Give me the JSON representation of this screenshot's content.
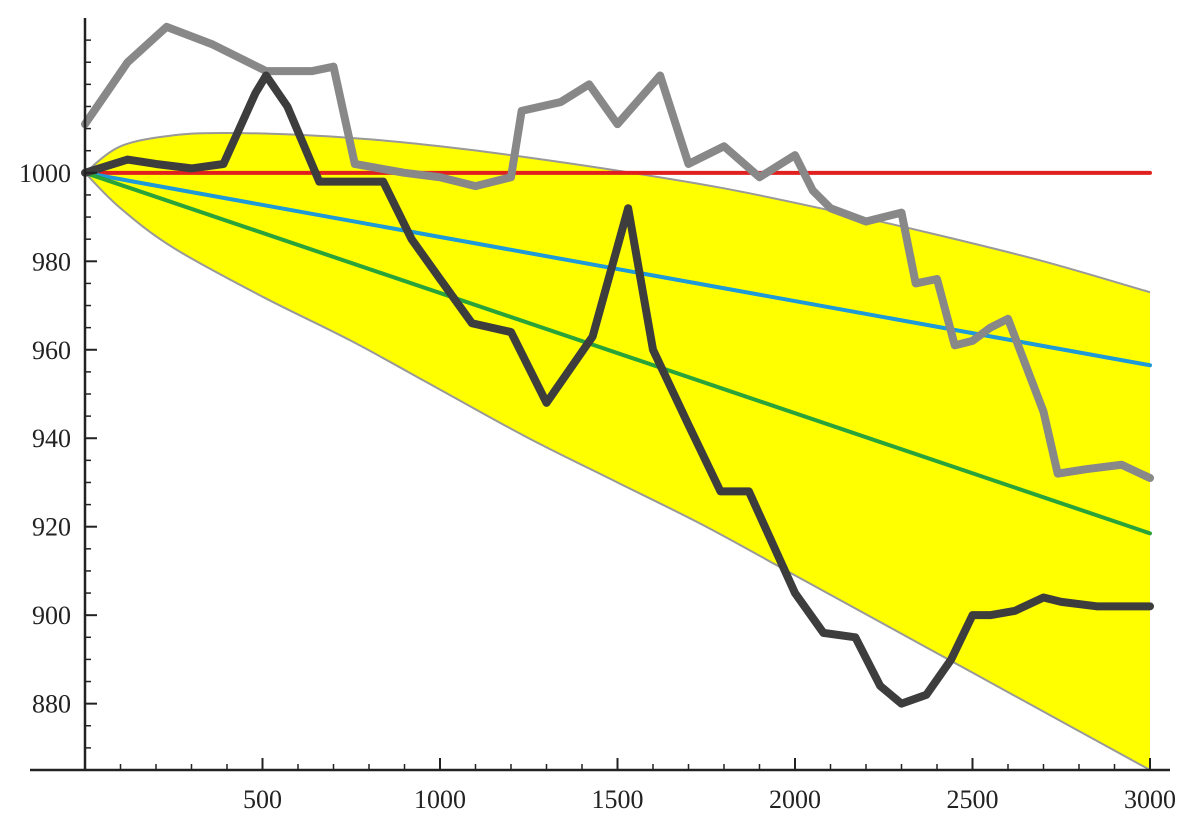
{
  "chart_data": {
    "type": "line",
    "title": "",
    "xlabel": "",
    "ylabel": "",
    "xlim": [
      0,
      3000
    ],
    "ylim": [
      865,
      1035
    ],
    "x_ticks": [
      500,
      1000,
      1500,
      2000,
      2500,
      3000
    ],
    "y_ticks": [
      880,
      900,
      920,
      940,
      960,
      980,
      1000
    ],
    "x_tick_labels": [
      "500",
      "1000",
      "1500",
      "2000",
      "2500",
      "3000"
    ],
    "y_tick_labels": [
      "880",
      "900",
      "920",
      "940",
      "960",
      "980",
      "1000"
    ],
    "grid": false,
    "band": {
      "fill": "#ffff00",
      "outline": "#999999",
      "upper": {
        "x": [
          0,
          100,
          250,
          400,
          600,
          800,
          1000,
          1200,
          1500,
          1800,
          2100,
          2400,
          2700,
          3000
        ],
        "y": [
          1000,
          1006,
          1008.5,
          1009,
          1008.6,
          1007.6,
          1006,
          1004,
          1000.5,
          996.5,
          991.5,
          986,
          980,
          973
        ]
      },
      "lower": {
        "x": [
          0,
          100,
          250,
          500,
          750,
          1000,
          1250,
          1500,
          1750,
          2000,
          2250,
          2500,
          2750,
          3000
        ],
        "y": [
          1000,
          992,
          983,
          972,
          962,
          951,
          940,
          930,
          920,
          909,
          898,
          887,
          876,
          865
        ]
      }
    },
    "series": [
      {
        "color": "#e0201e",
        "width": 4,
        "x": [
          0,
          3000
        ],
        "y": [
          1000,
          1000
        ]
      },
      {
        "color": "#1e9ad8",
        "width": 4,
        "x": [
          0,
          3000
        ],
        "y": [
          1000,
          956.5
        ]
      },
      {
        "color": "#2aa33a",
        "width": 4,
        "x": [
          0,
          3000
        ],
        "y": [
          1000,
          918.5
        ]
      },
      {
        "color": "#888888",
        "width": 8,
        "x": [
          0,
          120,
          230,
          360,
          510,
          590,
          640,
          700,
          760,
          900,
          1000,
          1100,
          1200,
          1230,
          1340,
          1420,
          1500,
          1620,
          1700,
          1800,
          1900,
          2000,
          2050,
          2100,
          2200,
          2300,
          2340,
          2400,
          2450,
          2500,
          2550,
          2600,
          2700,
          2740,
          2820,
          2920,
          3000
        ],
        "y": [
          1011,
          1025,
          1033,
          1029,
          1023,
          1023,
          1023,
          1024,
          1002,
          1000,
          999,
          997,
          999,
          1014,
          1016,
          1020,
          1011,
          1022,
          1002,
          1006,
          999,
          1004,
          996,
          992,
          989,
          991,
          975,
          976,
          961,
          962,
          965,
          967,
          946,
          932,
          933,
          934,
          931
        ]
      },
      {
        "color": "#3d3d3d",
        "width": 8,
        "x": [
          0,
          120,
          200,
          300,
          390,
          480,
          510,
          570,
          660,
          740,
          840,
          920,
          1000,
          1090,
          1200,
          1300,
          1430,
          1530,
          1600,
          1700,
          1790,
          1870,
          2000,
          2080,
          2170,
          2240,
          2300,
          2370,
          2440,
          2500,
          2550,
          2620,
          2700,
          2750,
          2850,
          2920,
          3000
        ],
        "y": [
          1000,
          1003,
          1002,
          1001,
          1002,
          1018,
          1022,
          1015,
          998,
          998,
          998,
          985,
          976,
          966,
          964,
          948,
          963,
          992,
          960,
          943,
          928,
          928,
          905,
          896,
          895,
          884,
          880,
          882,
          890,
          900,
          900,
          901,
          904,
          903,
          902,
          902,
          902
        ]
      }
    ]
  }
}
